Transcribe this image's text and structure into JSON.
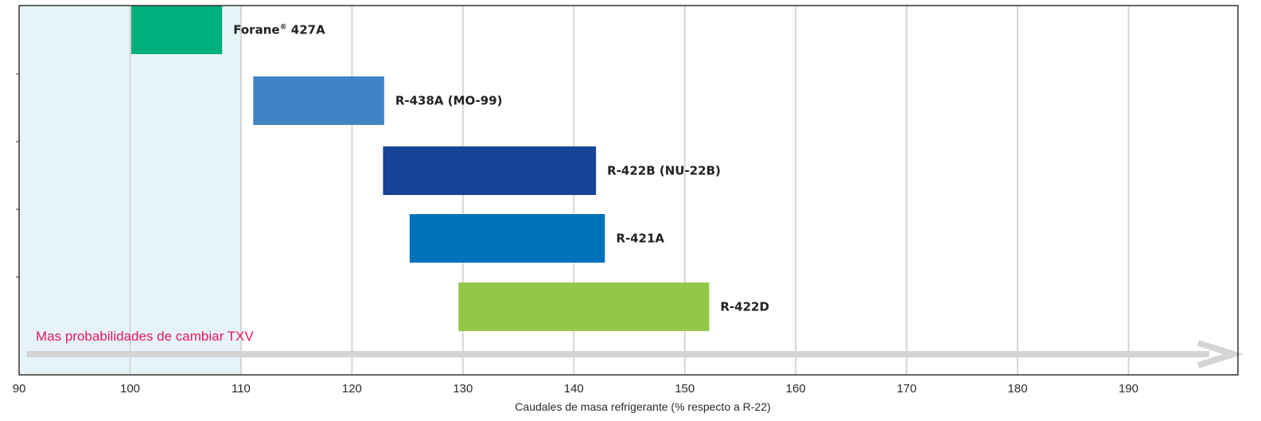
{
  "chart_data": {
    "type": "bar",
    "orientation": "horizontal-range",
    "title": "",
    "xlabel": "Caudales de masa refrigerante (% respecto a R-22)",
    "ylabel": "",
    "xlim": [
      90,
      199
    ],
    "xticks": [
      90,
      100,
      110,
      120,
      130,
      140,
      150,
      160,
      170,
      180,
      190
    ],
    "grid": true,
    "legend": "none",
    "band": {
      "from": 90,
      "to": 110,
      "color": "#e6f4f9"
    },
    "arrow_annotation": {
      "text": "Mas probabilidades de cambiar TXV",
      "from": 92,
      "to": 198,
      "color": "#e8185a",
      "arrow_color": "#d4d4d4"
    },
    "series": [
      {
        "name": "Forane",
        "label_main": "Forane",
        "label_sup": "®",
        "label_rest": " 427A",
        "start": 100.1,
        "end": 108.3,
        "color": "#00ae7e"
      },
      {
        "name": "R-438A (MO-99)",
        "label_main": "R-438A (MO-99)",
        "label_sup": "",
        "label_rest": "",
        "start": 111.1,
        "end": 122.9,
        "color": "#3f85c6"
      },
      {
        "name": "R-422B (NU-22B)",
        "label_main": "R-422B (NU-22B)",
        "label_sup": "",
        "label_rest": "",
        "start": 122.8,
        "end": 142.0,
        "color": "#164497"
      },
      {
        "name": "R-421A",
        "label_main": "R-421A",
        "label_sup": "",
        "label_rest": "",
        "start": 125.2,
        "end": 142.8,
        "color": "#0071bb"
      },
      {
        "name": "R-422D",
        "label_main": "R-422D",
        "label_sup": "",
        "label_rest": "",
        "start": 129.6,
        "end": 152.2,
        "color": "#92c848"
      }
    ]
  }
}
